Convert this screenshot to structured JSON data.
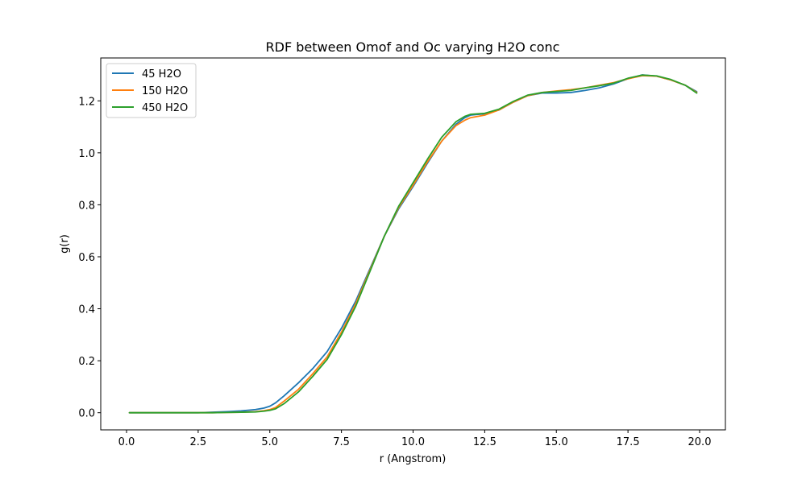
{
  "chart_data": {
    "type": "line",
    "title": "RDF between Omof and Oc varying H2O conc",
    "xlabel": "r (Angstrom)",
    "ylabel": "g(r)",
    "xlim": [
      -0.9,
      20.9
    ],
    "ylim": [
      -0.066,
      1.365
    ],
    "xticks": [
      0.0,
      2.5,
      5.0,
      7.5,
      10.0,
      12.5,
      15.0,
      17.5,
      20.0
    ],
    "xtick_labels": [
      "0.0",
      "2.5",
      "5.0",
      "7.5",
      "10.0",
      "12.5",
      "15.0",
      "17.5",
      "20.0"
    ],
    "yticks": [
      0.0,
      0.2,
      0.4,
      0.6,
      0.8,
      1.0,
      1.2
    ],
    "ytick_labels": [
      "0.0",
      "0.2",
      "0.4",
      "0.6",
      "0.8",
      "1.0",
      "1.2"
    ],
    "grid": false,
    "legend_position": "upper-left",
    "series": [
      {
        "name": "45 H2O",
        "color": "#1f77b4",
        "x": [
          0.1,
          1.0,
          2.0,
          2.5,
          3.0,
          3.5,
          4.0,
          4.5,
          4.8,
          5.0,
          5.2,
          5.5,
          6.0,
          6.5,
          7.0,
          7.5,
          8.0,
          8.5,
          9.0,
          9.5,
          10.0,
          10.5,
          11.0,
          11.5,
          11.8,
          12.0,
          12.5,
          13.0,
          13.5,
          14.0,
          14.5,
          15.0,
          15.5,
          16.0,
          16.5,
          17.0,
          17.5,
          18.0,
          18.5,
          19.0,
          19.5,
          19.9
        ],
        "y": [
          0.0,
          0.0,
          0.0,
          0.0,
          0.002,
          0.004,
          0.007,
          0.012,
          0.018,
          0.025,
          0.038,
          0.065,
          0.115,
          0.17,
          0.235,
          0.325,
          0.43,
          0.555,
          0.68,
          0.785,
          0.87,
          0.96,
          1.045,
          1.11,
          1.135,
          1.145,
          1.15,
          1.165,
          1.195,
          1.22,
          1.23,
          1.23,
          1.232,
          1.24,
          1.25,
          1.265,
          1.285,
          1.3,
          1.295,
          1.28,
          1.26,
          1.235
        ]
      },
      {
        "name": "150 H2O",
        "color": "#ff7f0e",
        "x": [
          0.1,
          1.0,
          2.0,
          2.5,
          3.0,
          3.5,
          4.0,
          4.5,
          4.8,
          5.0,
          5.2,
          5.5,
          6.0,
          6.5,
          7.0,
          7.5,
          8.0,
          8.5,
          9.0,
          9.5,
          10.0,
          10.5,
          11.0,
          11.5,
          11.8,
          12.0,
          12.5,
          13.0,
          13.5,
          14.0,
          14.5,
          15.0,
          15.5,
          16.0,
          16.5,
          17.0,
          17.5,
          18.0,
          18.5,
          19.0,
          19.5,
          19.9
        ],
        "y": [
          0.0,
          0.0,
          0.0,
          0.0,
          0.0,
          0.001,
          0.002,
          0.004,
          0.008,
          0.012,
          0.02,
          0.045,
          0.09,
          0.15,
          0.215,
          0.31,
          0.42,
          0.55,
          0.68,
          0.79,
          0.875,
          0.965,
          1.045,
          1.105,
          1.125,
          1.135,
          1.145,
          1.165,
          1.195,
          1.22,
          1.232,
          1.238,
          1.243,
          1.25,
          1.26,
          1.27,
          1.285,
          1.297,
          1.295,
          1.28,
          1.26,
          1.232
        ]
      },
      {
        "name": "450 H2O",
        "color": "#2ca02c",
        "x": [
          0.1,
          1.0,
          2.0,
          2.5,
          3.0,
          3.5,
          4.0,
          4.5,
          4.8,
          5.0,
          5.2,
          5.5,
          6.0,
          6.5,
          7.0,
          7.5,
          8.0,
          8.5,
          9.0,
          9.5,
          10.0,
          10.5,
          11.0,
          11.5,
          11.8,
          12.0,
          12.5,
          13.0,
          13.5,
          14.0,
          14.5,
          15.0,
          15.5,
          16.0,
          16.5,
          17.0,
          17.5,
          18.0,
          18.5,
          19.0,
          19.5,
          19.9
        ],
        "y": [
          0.0,
          0.0,
          0.0,
          0.0,
          0.0,
          0.001,
          0.002,
          0.003,
          0.006,
          0.009,
          0.015,
          0.035,
          0.08,
          0.14,
          0.205,
          0.3,
          0.41,
          0.545,
          0.68,
          0.795,
          0.885,
          0.975,
          1.06,
          1.12,
          1.14,
          1.148,
          1.152,
          1.168,
          1.198,
          1.222,
          1.232,
          1.236,
          1.24,
          1.25,
          1.258,
          1.268,
          1.287,
          1.299,
          1.296,
          1.282,
          1.26,
          1.23
        ]
      }
    ]
  }
}
